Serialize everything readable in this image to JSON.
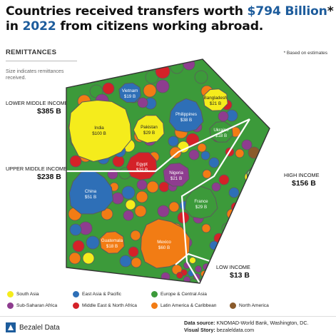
{
  "title": {
    "line1_a": "Countries received transfers worth ",
    "line1_highlight": "$794 Billion",
    "line1_star": "*",
    "line2_a": "in ",
    "line2_highlight": "2022",
    "line2_b": " from citizens working abroad."
  },
  "subhead": "REMITTANCES",
  "note": "* Based on estimates",
  "size_note": "Size indicates remittances received.",
  "income_groups": [
    {
      "label": "LOWER MIDDLE INCOME",
      "value": "$385 B"
    },
    {
      "label": "UPPER MIDDLE INCOME",
      "value": "$238 B"
    },
    {
      "label": "HIGH INCOME",
      "value": "$156 B"
    },
    {
      "label": "LOW INCOME",
      "value": "$13 B"
    }
  ],
  "colors": {
    "South Asia": "#f5ec1c",
    "East Asia & Pacific": "#2e6fb7",
    "Europe & Central Asia": "#3c9a3a",
    "Sub-Saharan Africa": "#8e3d8f",
    "Middle East & North Africa": "#d42128",
    "Latin America & Caribbean": "#f27c14",
    "North America": "#8a5a2b",
    "highlight": "#1d5c9c"
  },
  "chart_data": {
    "type": "voronoi treemap",
    "total": "$794 Billion",
    "groups": [
      {
        "name": "LOWER MIDDLE INCOME",
        "value": "$385 B"
      },
      {
        "name": "UPPER MIDDLE INCOME",
        "value": "$238 B"
      },
      {
        "name": "HIGH INCOME",
        "value": "$156 B"
      },
      {
        "name": "LOW INCOME",
        "value": "$13 B"
      }
    ],
    "countries": [
      {
        "name": "India",
        "label": "$100 B",
        "value": 100,
        "region": "South Asia",
        "group": "LOWER MIDDLE INCOME"
      },
      {
        "name": "Mexico",
        "label": "$60 B",
        "value": 60,
        "region": "Latin America & Caribbean",
        "group": "UPPER MIDDLE INCOME"
      },
      {
        "name": "China",
        "label": "$51 B",
        "value": 51,
        "region": "East Asia & Pacific",
        "group": "UPPER MIDDLE INCOME"
      },
      {
        "name": "Philippines",
        "label": "$38 B",
        "value": 38,
        "region": "East Asia & Pacific",
        "group": "LOWER MIDDLE INCOME"
      },
      {
        "name": "Egypt",
        "label": "$32 B",
        "value": 32,
        "region": "Middle East & North Africa",
        "group": "LOWER MIDDLE INCOME"
      },
      {
        "name": "Pakistan",
        "label": "$29 B",
        "value": 29,
        "region": "South Asia",
        "group": "LOWER MIDDLE INCOME"
      },
      {
        "name": "France",
        "label": "$29 B",
        "value": 29,
        "region": "Europe & Central Asia",
        "group": "HIGH INCOME"
      },
      {
        "name": "Bangladesh",
        "label": "$21 B",
        "value": 21,
        "region": "South Asia",
        "group": "LOWER MIDDLE INCOME"
      },
      {
        "name": "Nigeria",
        "label": "$21 B",
        "value": 21,
        "region": "Sub-Saharan Africa",
        "group": "LOWER MIDDLE INCOME"
      },
      {
        "name": "Vietnam",
        "label": "$19 B",
        "value": 19,
        "region": "East Asia & Pacific",
        "group": "LOWER MIDDLE INCOME"
      },
      {
        "name": "Guatemala",
        "label": "$18 B",
        "value": 18,
        "region": "Latin America & Caribbean",
        "group": "UPPER MIDDLE INCOME"
      },
      {
        "name": "Ukraine",
        "label": "$18 B",
        "value": 18,
        "region": "Europe & Central Asia",
        "group": "LOWER MIDDLE INCOME"
      },
      {
        "name": "Germany",
        "label": "$18 B",
        "value": 18,
        "region": "Europe & Central Asia",
        "group": "HIGH INCOME"
      }
    ]
  },
  "legend": [
    {
      "label": "South Asia",
      "color": "#f5ec1c"
    },
    {
      "label": "East Asia & Pacific",
      "color": "#2e6fb7"
    },
    {
      "label": "Europe & Central Asia",
      "color": "#3c9a3a"
    },
    {
      "label": "Sub-Saharan Africa",
      "color": "#8e3d8f"
    },
    {
      "label": "Middle East & North Africa",
      "color": "#d42128"
    },
    {
      "label": "Latin America & Caribbean",
      "color": "#f27c14"
    },
    {
      "label": "North America",
      "color": "#8a5a2b"
    }
  ],
  "footer": {
    "brand": "Bezalel Data",
    "source_label": "Data source:",
    "source_text": " KNOMAD-World Bank, Washington, DC.",
    "story_label": "Visual Story:",
    "story_text": " bezaleldata.com"
  }
}
